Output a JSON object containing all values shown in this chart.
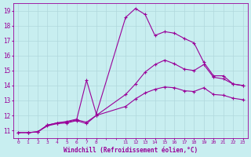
{
  "background_color": "#c8eef0",
  "grid_color": "#b0d8dc",
  "line_color": "#990099",
  "xlabel": "Windchill (Refroidissement éolien,°C)",
  "xlim": [
    -0.5,
    23.5
  ],
  "ylim": [
    10.5,
    19.5
  ],
  "yticks": [
    11,
    12,
    13,
    14,
    15,
    16,
    17,
    18,
    19
  ],
  "xtick_positions": [
    0,
    1,
    2,
    3,
    4,
    5,
    6,
    7,
    8,
    11,
    12,
    13,
    14,
    15,
    16,
    17,
    18,
    19,
    20,
    21,
    22,
    23
  ],
  "xtick_labels": [
    "0",
    "1",
    "2",
    "3",
    "4",
    "5",
    "6",
    "7",
    "8",
    "11",
    "12",
    "13",
    "14",
    "15",
    "16",
    "17",
    "18",
    "19",
    "20",
    "21",
    "22",
    "23"
  ],
  "line1": {
    "x": [
      0,
      1,
      2,
      3,
      4,
      5,
      6,
      7,
      8,
      11,
      12,
      13,
      14,
      15,
      16,
      17,
      18,
      19,
      20,
      21,
      22,
      23
    ],
    "y": [
      10.85,
      10.85,
      10.9,
      11.35,
      11.5,
      11.55,
      11.7,
      11.55,
      12.0,
      13.4,
      14.1,
      14.9,
      15.4,
      15.7,
      15.45,
      15.1,
      15.0,
      15.4,
      14.55,
      14.45,
      14.1,
      14.0
    ]
  },
  "line2": {
    "x": [
      0,
      1,
      2,
      3,
      4,
      5,
      6,
      7,
      8,
      11,
      12,
      13,
      14,
      15,
      16,
      17,
      18,
      19,
      20,
      21,
      22,
      23
    ],
    "y": [
      10.85,
      10.85,
      10.9,
      11.3,
      11.45,
      11.5,
      11.65,
      11.45,
      12.0,
      12.6,
      13.1,
      13.5,
      13.75,
      13.9,
      13.85,
      13.65,
      13.6,
      13.85,
      13.4,
      13.35,
      13.15,
      13.05
    ]
  },
  "line3": {
    "x": [
      1,
      2,
      3,
      4,
      5,
      6,
      7,
      8,
      11,
      12,
      13,
      14,
      15,
      16,
      17,
      18,
      19,
      20,
      21,
      22,
      23
    ],
    "y": [
      10.85,
      10.9,
      11.35,
      11.5,
      11.6,
      11.75,
      14.35,
      12.1,
      18.55,
      19.15,
      18.75,
      17.35,
      17.6,
      17.5,
      17.15,
      16.85,
      15.55,
      14.65,
      14.65,
      14.1,
      14.0
    ]
  }
}
